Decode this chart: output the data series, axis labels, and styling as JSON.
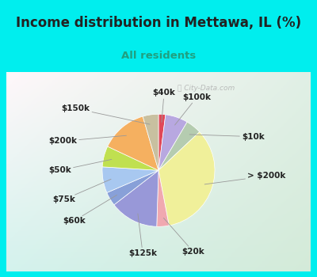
{
  "title": "Income distribution in Mettawa, IL (%)",
  "subtitle": "All residents",
  "background_outer": "#00EEEE",
  "watermark": "City-Data.com",
  "slices": [
    {
      "label": "$10k",
      "value": 4.5,
      "color": "#b5ccb0"
    },
    {
      "label": "$20k",
      "value": 3.5,
      "color": "#f0a8b0"
    },
    {
      "label": "$125k",
      "value": 14.0,
      "color": "#9898d8"
    },
    {
      "label": "> $200k",
      "value": 34.0,
      "color": "#f0f09a"
    },
    {
      "label": "$100k",
      "value": 6.5,
      "color": "#b8a8e0"
    },
    {
      "label": "$40k",
      "value": 2.0,
      "color": "#e04858"
    },
    {
      "label": "$150k",
      "value": 4.5,
      "color": "#c8c0a0"
    },
    {
      "label": "$200k",
      "value": 13.5,
      "color": "#f5b060"
    },
    {
      "label": "$50k",
      "value": 6.0,
      "color": "#c0e050"
    },
    {
      "label": "$75k",
      "value": 7.5,
      "color": "#a8c8f0"
    },
    {
      "label": "$60k",
      "value": 4.0,
      "color": "#88a0d8"
    }
  ],
  "label_fontsize": 7.5,
  "title_fontsize": 12,
  "subtitle_fontsize": 9.5,
  "title_color": "#222222",
  "subtitle_color": "#20a080"
}
